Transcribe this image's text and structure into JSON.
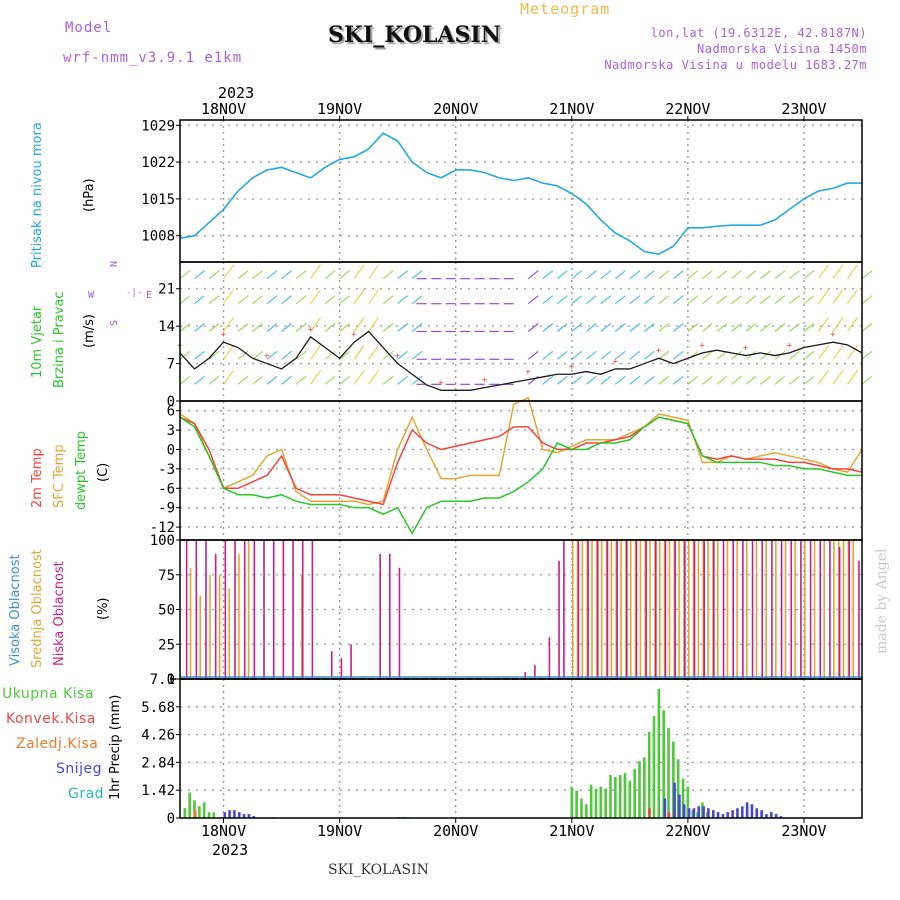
{
  "header": {
    "model_label": "Model",
    "model_name": "wrf-nmm_v3.9.1 e1km",
    "station": "SKI_KOLASIN",
    "meteogram": "Meteogram",
    "lonlat": "lon,lat (19.6312E, 42.8187N)",
    "altitude": "Nadmorska Visina 1450m",
    "model_altitude": "Nadmorska Visina u modelu 1683.27m"
  },
  "time_axis": {
    "year": "2023",
    "days": [
      "18NOV",
      "19NOV",
      "20NOV",
      "21NOV",
      "22NOV",
      "23NOV"
    ]
  },
  "credit": "made by Angel",
  "footer": "SKI_KOLASIN",
  "panels": {
    "pressure": {
      "labels": [
        "Pritisak na nivou mora",
        "(hPa)"
      ],
      "ticks": [
        "1029",
        "1022",
        "1015",
        "1008"
      ]
    },
    "wind": {
      "labels": [
        "10m Vjetar",
        "Brzina i Pravac",
        "(m/s)"
      ],
      "ticks": [
        "21",
        "14",
        "7",
        "0"
      ],
      "compass": {
        "n": "N",
        "s": "S",
        "e": "E",
        "w": "W"
      }
    },
    "temp": {
      "labels": [
        "2m Temp",
        "SFC Temp",
        "dewpt Temp",
        "(C)"
      ],
      "ticks": [
        "6",
        "3",
        "0",
        "-3",
        "-6",
        "-9",
        "-12"
      ]
    },
    "cloud": {
      "labels": [
        "Visoka Oblacnost",
        "Srednja Oblacnost",
        "Niska Oblacnost",
        "(%)"
      ],
      "ticks": [
        "100",
        "75",
        "50",
        "25",
        "0"
      ]
    },
    "precip": {
      "axis_label": "1hr Precip (mm)",
      "ticks": [
        "7.1",
        "5.68",
        "4.26",
        "2.84",
        "1.42",
        "0"
      ],
      "legend": [
        "Ukupna Kisa",
        "Konvek.Kisa",
        "Zaledj.Kisa",
        "Snijeg",
        "Grad"
      ]
    }
  },
  "colors": {
    "pressure": "#23a7e6",
    "temp2m": "#f0463c",
    "sfc": "#e6a532",
    "dewpt": "#28c828",
    "cloud_high": "#3c8cdc",
    "cloud_mid": "#e6a532",
    "cloud_low": "#c81e8c",
    "rain": "#50c83c",
    "convective": "#f04646",
    "freezing": "#f07828",
    "snow": "#4646d2",
    "hail": "#28b4b4"
  },
  "chart_data": [
    {
      "type": "line",
      "title": "Pritisak na nivou mora",
      "ylabel": "(hPa)",
      "ylim": [
        1003,
        1030
      ],
      "x_unit": "hours since 18NOV 00UTC",
      "xlim": [
        -9,
        132
      ],
      "series": [
        {
          "name": "Pritisak na nivou mora",
          "x": [
            -9,
            -6,
            -3,
            0,
            3,
            6,
            9,
            12,
            15,
            18,
            21,
            24,
            27,
            30,
            33,
            36,
            39,
            42,
            45,
            48,
            51,
            54,
            57,
            60,
            63,
            66,
            69,
            72,
            75,
            78,
            81,
            84,
            87,
            90,
            93,
            96,
            99,
            102,
            105,
            108,
            111,
            114,
            117,
            120,
            123,
            126,
            129,
            132
          ],
          "y": [
            1007.5,
            1008,
            1010.5,
            1013,
            1016.5,
            1019,
            1020.5,
            1021,
            1020,
            1019,
            1021,
            1022.5,
            1023,
            1024.5,
            1027.5,
            1026,
            1022,
            1020,
            1019,
            1020.5,
            1020.5,
            1020,
            1019,
            1018.5,
            1019,
            1018,
            1017.5,
            1016,
            1014,
            1011,
            1008.5,
            1007,
            1005,
            1004.5,
            1006,
            1009.5,
            1009.5,
            1009.8,
            1010,
            1010,
            1010,
            1011,
            1013,
            1015,
            1016.5,
            1017,
            1018,
            1018
          ]
        }
      ]
    },
    {
      "type": "line",
      "title": "10m Vjetar Brzina i Pravac",
      "ylabel": "(m/s)",
      "ylim": [
        0,
        26
      ],
      "x_unit": "hours since 18NOV 00UTC",
      "xlim": [
        -9,
        132
      ],
      "series": [
        {
          "name": "10m Vjetar",
          "x": [
            -9,
            -6,
            -3,
            0,
            3,
            6,
            9,
            12,
            15,
            18,
            21,
            24,
            27,
            30,
            33,
            36,
            39,
            42,
            45,
            48,
            51,
            54,
            57,
            60,
            63,
            66,
            69,
            72,
            75,
            78,
            81,
            84,
            87,
            90,
            93,
            96,
            99,
            102,
            105,
            108,
            111,
            114,
            117,
            120,
            123,
            126,
            129,
            132
          ],
          "y": [
            9,
            6,
            8,
            11,
            10,
            8,
            7,
            6,
            8,
            12,
            10,
            8,
            11,
            13,
            10,
            7,
            5,
            3,
            2,
            2,
            2,
            2.5,
            3,
            3.5,
            4,
            4.5,
            5,
            5,
            5.5,
            5,
            6,
            6,
            7,
            8,
            7,
            8,
            9,
            9.5,
            9,
            8.5,
            9,
            8.5,
            9,
            10,
            10.5,
            11,
            10.5,
            9
          ]
        }
      ]
    },
    {
      "type": "line",
      "title": "2m Temp / SFC Temp / dewpt Temp",
      "ylabel": "(C)",
      "ylim": [
        -14,
        7.5
      ],
      "x_unit": "hours since 18NOV 00UTC",
      "xlim": [
        -9,
        132
      ],
      "series": [
        {
          "name": "2m Temp",
          "x": [
            -9,
            -6,
            -3,
            0,
            3,
            6,
            9,
            12,
            15,
            18,
            21,
            24,
            27,
            30,
            33,
            36,
            39,
            42,
            45,
            48,
            51,
            54,
            57,
            60,
            63,
            66,
            69,
            72,
            75,
            78,
            81,
            84,
            87,
            90,
            93,
            96,
            99,
            102,
            105,
            108,
            111,
            114,
            117,
            120,
            123,
            126,
            129,
            132
          ],
          "y": [
            5,
            4,
            0,
            -6,
            -6,
            -5,
            -4,
            -1,
            -6,
            -7,
            -7,
            -7,
            -7.5,
            -8,
            -8.5,
            -2,
            3,
            1,
            0,
            0.5,
            1,
            1.5,
            2,
            3.5,
            3.5,
            1,
            0,
            0,
            1,
            1,
            1.5,
            2,
            3.5,
            5,
            4.5,
            4,
            -1,
            -1.5,
            -1,
            -1.5,
            -1.5,
            -1.5,
            -2,
            -2,
            -2.5,
            -3,
            -3,
            -3.5
          ]
        },
        {
          "name": "SFC Temp",
          "x": [
            -9,
            -6,
            -3,
            0,
            3,
            6,
            9,
            12,
            15,
            18,
            21,
            24,
            27,
            30,
            33,
            36,
            39,
            42,
            45,
            48,
            51,
            54,
            57,
            60,
            63,
            66,
            69,
            72,
            75,
            78,
            81,
            84,
            87,
            90,
            93,
            96,
            99,
            102,
            105,
            108,
            111,
            114,
            117,
            120,
            123,
            126,
            129,
            132
          ],
          "y": [
            5.5,
            4,
            -1,
            -6,
            -5,
            -4,
            -1,
            0,
            -6.5,
            -8,
            -8,
            -8,
            -8,
            -8.5,
            -8,
            0,
            5,
            0,
            -4.5,
            -4.5,
            -4,
            -4,
            -4,
            7,
            8,
            0,
            -0.5,
            0.5,
            1.5,
            1.5,
            1.5,
            2.5,
            3.5,
            5.5,
            5,
            4.5,
            -2,
            -2,
            -1,
            -1.5,
            -1,
            -0.5,
            -1,
            -1.5,
            -2,
            -3,
            -3.5,
            0
          ]
        },
        {
          "name": "dewpt Temp",
          "x": [
            -9,
            -6,
            -3,
            0,
            3,
            6,
            9,
            12,
            15,
            18,
            21,
            24,
            27,
            30,
            33,
            36,
            39,
            42,
            45,
            48,
            51,
            54,
            57,
            60,
            63,
            66,
            69,
            72,
            75,
            78,
            81,
            84,
            87,
            90,
            93,
            96,
            99,
            102,
            105,
            108,
            111,
            114,
            117,
            120,
            123,
            126,
            129,
            132
          ],
          "y": [
            5,
            3.5,
            -1,
            -6,
            -7,
            -7,
            -7.5,
            -7,
            -8,
            -8.5,
            -8.5,
            -8.5,
            -9,
            -9,
            -10,
            -9,
            -13,
            -9,
            -8,
            -8,
            -8,
            -7.5,
            -7.5,
            -6.5,
            -5,
            -3,
            1,
            0,
            0,
            1,
            1,
            1.5,
            3.5,
            5,
            4.5,
            4,
            -1,
            -2,
            -2,
            -2,
            -2,
            -2.5,
            -2.5,
            -3,
            -3,
            -3.5,
            -4,
            -4
          ]
        }
      ]
    },
    {
      "type": "bar",
      "title": "Oblacnost",
      "ylabel": "(%)",
      "ylim": [
        0,
        100
      ],
      "x_unit": "hours since 18NOV 00UTC",
      "xlim": [
        -9,
        132
      ],
      "series": [
        {
          "name": "Visoka Oblacnost",
          "x": [],
          "values": []
        },
        {
          "name": "Srednja Oblacnost",
          "x": [
            -7,
            -5,
            -3,
            -1,
            1,
            3,
            5,
            16,
            72,
            73,
            74,
            75,
            76,
            77,
            78,
            79,
            80,
            81,
            82,
            83,
            84,
            85,
            86,
            87,
            88,
            89,
            90,
            91,
            92,
            93,
            94,
            95,
            96,
            97,
            98,
            99,
            100,
            101,
            102,
            104,
            106,
            108,
            110,
            112,
            114,
            116,
            118,
            120,
            122,
            124,
            126,
            127,
            128,
            129,
            130
          ],
          "values": [
            80,
            60,
            75,
            75,
            65,
            90,
            100,
            75,
            100,
            100,
            100,
            100,
            100,
            100,
            100,
            100,
            100,
            100,
            100,
            100,
            100,
            100,
            100,
            100,
            100,
            100,
            100,
            100,
            100,
            100,
            100,
            100,
            100,
            100,
            100,
            100,
            100,
            100,
            100,
            100,
            100,
            100,
            100,
            100,
            100,
            100,
            100,
            100,
            100,
            100,
            100,
            100,
            100,
            100,
            100
          ]
        },
        {
          "name": "Niska Oblacnost",
          "x": [
            -8,
            -6,
            -4,
            -2,
            0,
            2,
            4,
            6,
            8,
            10,
            12,
            14,
            16,
            18,
            22,
            24,
            26,
            32,
            34,
            36,
            62,
            64,
            67,
            69,
            70,
            73,
            75,
            77,
            79,
            81,
            83,
            85,
            87,
            89,
            91,
            93,
            95,
            97,
            99,
            101,
            103,
            105,
            107,
            109,
            111,
            113,
            115,
            117,
            119,
            121,
            123,
            125,
            127,
            129,
            131
          ],
          "values": [
            100,
            100,
            100,
            90,
            100,
            100,
            100,
            100,
            100,
            100,
            100,
            100,
            100,
            100,
            20,
            15,
            25,
            90,
            90,
            80,
            5,
            10,
            30,
            85,
            100,
            100,
            100,
            100,
            100,
            100,
            100,
            100,
            100,
            100,
            100,
            100,
            100,
            100,
            100,
            100,
            100,
            100,
            100,
            100,
            100,
            100,
            100,
            100,
            100,
            100,
            100,
            100,
            95,
            100,
            85
          ]
        }
      ]
    },
    {
      "type": "bar",
      "title": "1hr Precip",
      "ylabel": "1hr Precip (mm)",
      "ylim": [
        0,
        7.1
      ],
      "x_unit": "hours since 18NOV 00UTC",
      "xlim": [
        -9,
        132
      ],
      "series": [
        {
          "name": "Ukupna Kisa",
          "x": [
            -8,
            -7,
            -6,
            -5,
            -4,
            -3,
            -2,
            72,
            73,
            74,
            75,
            76,
            77,
            78,
            79,
            80,
            81,
            82,
            83,
            84,
            85,
            86,
            87,
            88,
            89,
            90,
            91,
            92,
            93,
            94,
            95,
            96,
            97,
            98,
            99,
            100
          ],
          "values": [
            0.5,
            1.3,
            0.9,
            0.6,
            0.8,
            0.3,
            0.3,
            1.6,
            1.4,
            1.0,
            0.7,
            1.7,
            1.5,
            1.6,
            1.5,
            2.2,
            2.1,
            2.2,
            2.3,
            1.9,
            2.5,
            2.9,
            3.1,
            4.4,
            5.2,
            6.6,
            5.5,
            4.6,
            3.9,
            3.0,
            2.0,
            1.6,
            0.4,
            0.3,
            0.8,
            0.3
          ]
        },
        {
          "name": "Konvek.Kisa",
          "x": [
            88,
            92
          ],
          "values": [
            0.5,
            0.3
          ]
        },
        {
          "name": "Zaledj.Kisa",
          "x": [
            -6,
            93
          ],
          "values": [
            0.4,
            0.3
          ]
        },
        {
          "name": "Snijeg",
          "x": [
            0,
            1,
            2,
            3,
            4,
            5,
            6,
            91,
            93,
            94,
            95,
            96,
            97,
            98,
            99,
            100,
            101,
            102,
            103,
            104,
            105,
            106,
            107,
            108,
            109,
            110,
            111,
            112,
            113,
            114,
            115
          ],
          "values": [
            0.3,
            0.4,
            0.4,
            0.3,
            0.2,
            0.2,
            0.1,
            1.0,
            1.8,
            1.2,
            0.7,
            0.5,
            0.5,
            0.6,
            0.6,
            0.5,
            0.4,
            0.3,
            0.2,
            0.3,
            0.4,
            0.5,
            0.6,
            0.8,
            0.7,
            0.5,
            0.4,
            0.2,
            0.3,
            0.2,
            0.1
          ]
        },
        {
          "name": "Grad",
          "x": [
            10,
            36,
            37,
            38
          ],
          "values": [
            0.05,
            0.05,
            0.05,
            0.05
          ]
        }
      ]
    }
  ]
}
